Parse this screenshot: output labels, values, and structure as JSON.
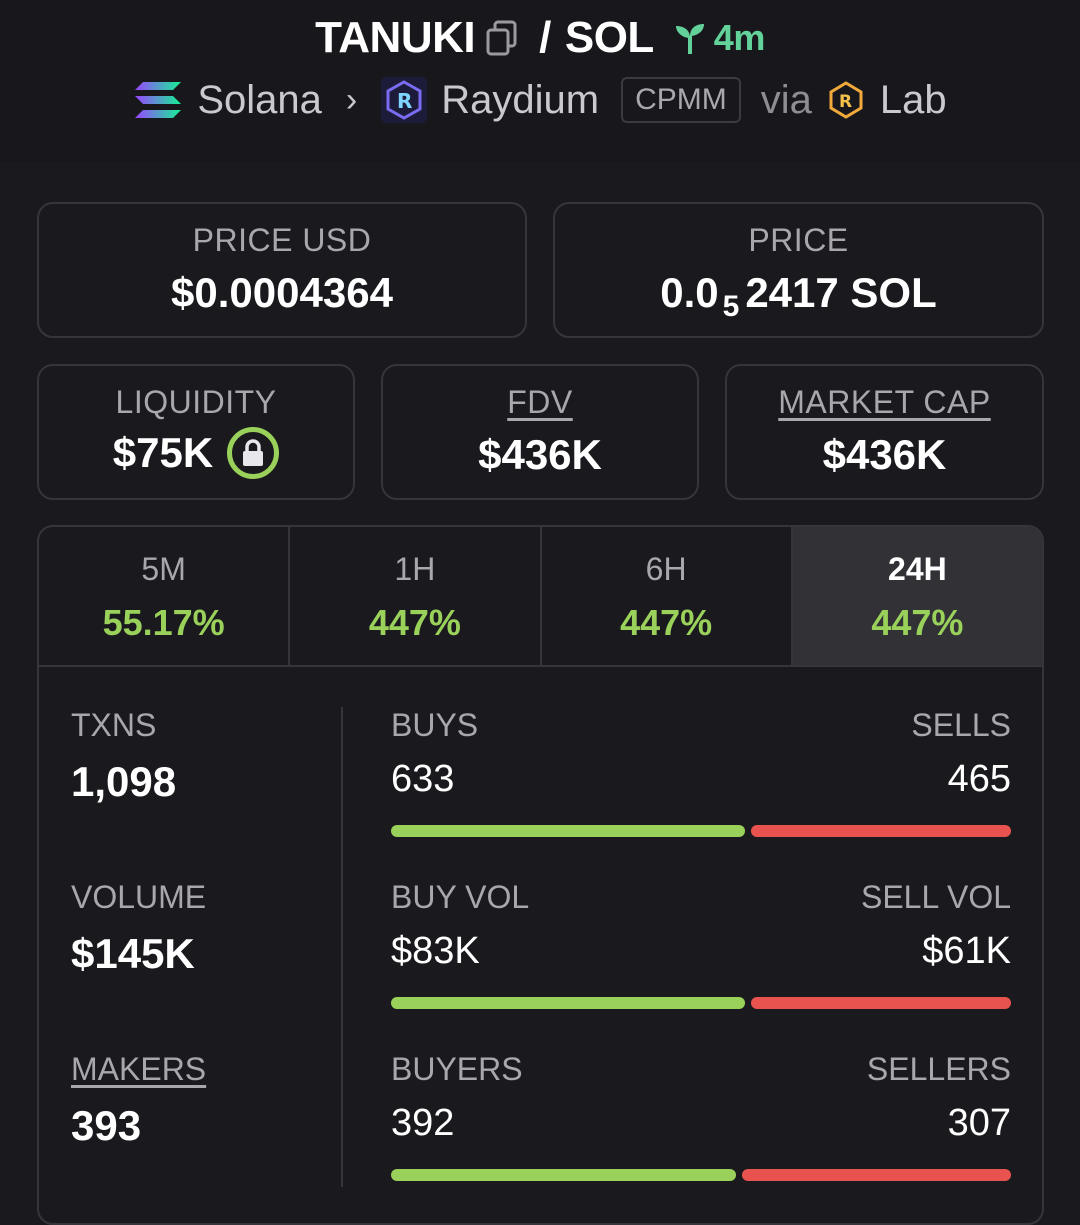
{
  "header": {
    "base_token": "TANUKI",
    "quote_token": "SOL",
    "separator": "/",
    "age": "4m",
    "chain": "Solana",
    "dex": "Raydium",
    "pool_type": "CPMM",
    "via": "via",
    "launchpad": "Lab"
  },
  "prices": {
    "price_usd_label": "PRICE USD",
    "price_usd": "$0.0004364",
    "price_label": "PRICE",
    "price_prefix": "0.0",
    "price_zeros": "5",
    "price_digits": "2417 SOL"
  },
  "metrics": {
    "liquidity_label": "LIQUIDITY",
    "liquidity": "$75K",
    "fdv_label": "FDV",
    "fdv": "$436K",
    "mcap_label": "MARKET CAP",
    "mcap": "$436K"
  },
  "tabs": [
    {
      "label": "5M",
      "value": "55.17%"
    },
    {
      "label": "1H",
      "value": "447%"
    },
    {
      "label": "6H",
      "value": "447%"
    },
    {
      "label": "24H",
      "value": "447%",
      "active": true
    }
  ],
  "stats": {
    "txns_label": "TXNS",
    "txns": "1,098",
    "volume_label": "VOLUME",
    "volume": "$145K",
    "makers_label": "MAKERS",
    "makers": "393",
    "buys_label": "BUYS",
    "buys": "633",
    "sells_label": "SELLS",
    "sells": "465",
    "buy_vol_label": "BUY VOL",
    "buy_vol": "$83K",
    "sell_vol_label": "SELL VOL",
    "sell_vol": "$61K",
    "buyers_label": "BUYERS",
    "buyers": "392",
    "sellers_label": "SELLERS",
    "sellers": "307",
    "ratios": {
      "buys": 0.576,
      "buy_vol": 0.576,
      "buyers": 0.561
    }
  },
  "colors": {
    "positive": "#9ad15a",
    "negative": "#e9534f",
    "age": "#63d29a"
  }
}
